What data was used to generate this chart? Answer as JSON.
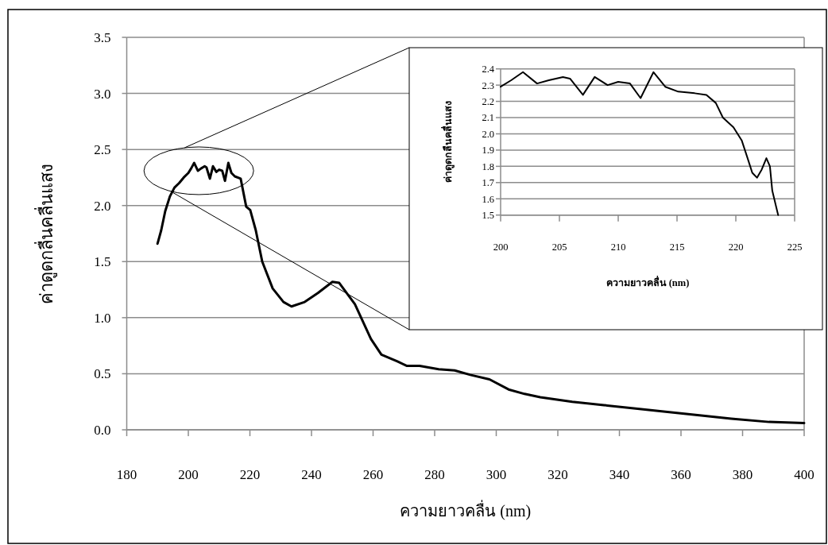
{
  "chart_data": [
    {
      "type": "line",
      "xlabel": "ความยาวคลื่น (nm)",
      "ylabel": "ค่าดูดกลื่นคลื่นแสง",
      "xlim": [
        180,
        400
      ],
      "ylim": [
        0,
        3.5
      ],
      "xticks": [
        180,
        200,
        220,
        240,
        260,
        280,
        300,
        320,
        340,
        360,
        380,
        400
      ],
      "yticks": [
        {
          "value": 0,
          "label": "0.0"
        },
        {
          "value": 0.5,
          "label": "0.5"
        },
        {
          "value": 1,
          "label": "1.0"
        },
        {
          "value": 1.5,
          "label": "1.5"
        },
        {
          "value": 2,
          "label": "2.0"
        },
        {
          "value": 2.5,
          "label": "2.5"
        },
        {
          "value": 3,
          "label": "3.0"
        },
        {
          "value": 3.5,
          "label": "3.5"
        }
      ],
      "grid": "y",
      "series": [
        {
          "color": "#000000",
          "x": [
            190,
            191.2,
            192.5,
            194,
            195.5,
            197,
            198.5,
            200,
            200.9,
            201.9,
            203.1,
            204.1,
            205.3,
            205.9,
            207.0,
            208.0,
            209.1,
            210.0,
            211.0,
            211.9,
            213.0,
            214.0,
            215.1,
            217,
            218.8,
            220.1,
            221.9,
            224.0,
            227.4,
            230.9,
            233.5,
            237.8,
            242.1,
            246.8,
            249.0,
            254.1,
            259.3,
            262.7,
            267.9,
            271.0,
            275.1,
            281.3,
            286.5,
            291.6,
            297.8,
            304.0,
            309.2,
            314.3,
            324.7,
            335.0,
            345.3,
            355.6,
            366.0,
            376.3,
            388.6,
            400
          ],
          "values": [
            1.66,
            1.78,
            1.95,
            2.08,
            2.16,
            2.2,
            2.25,
            2.29,
            2.33,
            2.38,
            2.31,
            2.33,
            2.35,
            2.34,
            2.24,
            2.35,
            2.3,
            2.32,
            2.31,
            2.22,
            2.38,
            2.29,
            2.26,
            2.24,
            1.99,
            1.96,
            1.78,
            1.5,
            1.26,
            1.14,
            1.1,
            1.14,
            1.22,
            1.32,
            1.31,
            1.12,
            0.81,
            0.67,
            0.61,
            0.57,
            0.57,
            0.54,
            0.53,
            0.49,
            0.45,
            0.36,
            0.32,
            0.29,
            0.25,
            0.22,
            0.19,
            0.16,
            0.13,
            0.1,
            0.07,
            0.06
          ]
        }
      ]
    },
    {
      "type": "line",
      "xlabel": "ความยาวคลื่น (nm)",
      "ylabel": "ค่าดูดกลืนคลื่นแสง",
      "xlim": [
        200,
        225
      ],
      "ylim": [
        1.5,
        2.4
      ],
      "xticks": [
        200,
        205,
        210,
        215,
        220,
        225
      ],
      "yticks": [
        {
          "value": 1.5,
          "label": "1.5"
        },
        {
          "value": 1.6,
          "label": "1.6"
        },
        {
          "value": 1.7,
          "label": "1.7"
        },
        {
          "value": 1.8,
          "label": "1.8"
        },
        {
          "value": 1.9,
          "label": "1.9"
        },
        {
          "value": 2.0,
          "label": "2.0"
        },
        {
          "value": 2.1,
          "label": "2.1"
        },
        {
          "value": 2.2,
          "label": "2.2"
        },
        {
          "value": 2.3,
          "label": "2.3"
        },
        {
          "value": 2.4,
          "label": "2.4"
        }
      ],
      "grid": "y",
      "series": [
        {
          "color": "#000000",
          "x": [
            200,
            200.9,
            201.9,
            203.1,
            204.1,
            205.3,
            205.9,
            207.0,
            208.0,
            209.1,
            210.0,
            211.0,
            211.9,
            213.0,
            214.0,
            215.1,
            216.5,
            217.5,
            218.3,
            218.9,
            219.8,
            220.5,
            221.0,
            221.4,
            221.8,
            222.2,
            222.6,
            222.9,
            223.1,
            223.4,
            223.6
          ],
          "values": [
            2.29,
            2.33,
            2.38,
            2.31,
            2.33,
            2.35,
            2.34,
            2.24,
            2.35,
            2.3,
            2.32,
            2.31,
            2.22,
            2.38,
            2.29,
            2.26,
            2.25,
            2.24,
            2.19,
            2.1,
            2.04,
            1.96,
            1.85,
            1.76,
            1.73,
            1.78,
            1.85,
            1.8,
            1.65,
            1.56,
            1.5
          ]
        }
      ]
    }
  ]
}
